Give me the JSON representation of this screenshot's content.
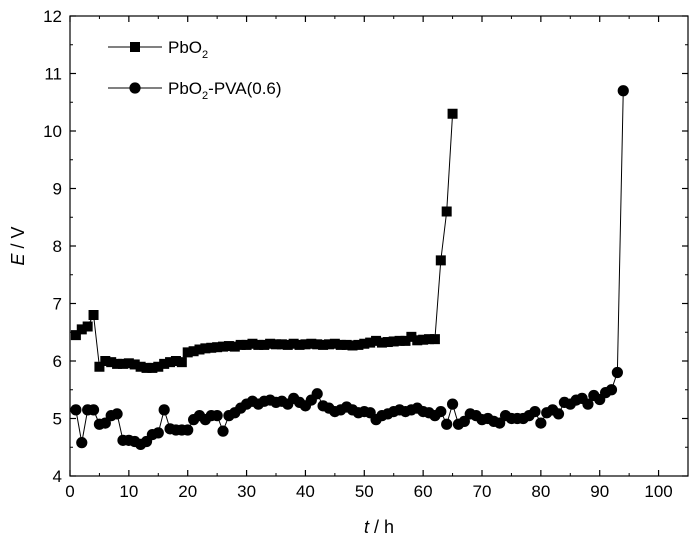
{
  "chart_data": {
    "type": "line",
    "x_axis": {
      "label_var": "t",
      "label_unit": " / h",
      "lim": [
        0,
        105
      ],
      "ticks": [
        0,
        10,
        20,
        30,
        40,
        50,
        60,
        70,
        80,
        90,
        100
      ],
      "tick_labels": [
        "0",
        "10",
        "20",
        "30",
        "40",
        "50",
        "60",
        "70",
        "80",
        "90",
        "100"
      ]
    },
    "y_axis": {
      "label_var": "E",
      "label_unit": " / V",
      "lim": [
        4,
        12
      ],
      "ticks": [
        4,
        5,
        6,
        7,
        8,
        9,
        10,
        11,
        12
      ],
      "tick_labels": [
        "4",
        "5",
        "6",
        "7",
        "8",
        "9",
        "10",
        "11",
        "12"
      ]
    },
    "grid": false,
    "legend_position": "top-left",
    "series": [
      {
        "legend_main": "PbO",
        "legend_sub": "2",
        "legend_rest": "",
        "marker": "square",
        "color": "#000000",
        "x": [
          1,
          2,
          3,
          4,
          5,
          6,
          7,
          8,
          9,
          10,
          11,
          12,
          13,
          14,
          15,
          16,
          17,
          18,
          19,
          20,
          21,
          22,
          23,
          24,
          25,
          26,
          27,
          28,
          29,
          30,
          31,
          32,
          33,
          34,
          35,
          36,
          37,
          38,
          39,
          40,
          41,
          42,
          43,
          44,
          45,
          46,
          47,
          48,
          49,
          50,
          51,
          52,
          53,
          54,
          55,
          56,
          57,
          58,
          59,
          60,
          61,
          62,
          63,
          64,
          65
        ],
        "y": [
          6.45,
          6.55,
          6.6,
          6.8,
          5.9,
          6.0,
          5.98,
          5.95,
          5.95,
          5.96,
          5.94,
          5.9,
          5.88,
          5.88,
          5.9,
          5.95,
          5.98,
          6.0,
          5.98,
          6.15,
          6.17,
          6.2,
          6.22,
          6.23,
          6.24,
          6.25,
          6.26,
          6.25,
          6.28,
          6.28,
          6.3,
          6.28,
          6.28,
          6.3,
          6.29,
          6.29,
          6.28,
          6.3,
          6.28,
          6.29,
          6.3,
          6.29,
          6.28,
          6.29,
          6.3,
          6.28,
          6.28,
          6.27,
          6.28,
          6.3,
          6.32,
          6.35,
          6.32,
          6.33,
          6.34,
          6.35,
          6.35,
          6.42,
          6.36,
          6.37,
          6.38,
          6.38,
          7.75,
          8.6,
          10.3
        ]
      },
      {
        "legend_main": "PbO",
        "legend_sub": "2",
        "legend_rest": "-PVA(0.6)",
        "marker": "circle",
        "color": "#000000",
        "x": [
          1,
          2,
          3,
          4,
          5,
          6,
          7,
          8,
          9,
          10,
          11,
          12,
          13,
          14,
          15,
          16,
          17,
          18,
          19,
          20,
          21,
          22,
          23,
          24,
          25,
          26,
          27,
          28,
          29,
          30,
          31,
          32,
          33,
          34,
          35,
          36,
          37,
          38,
          39,
          40,
          41,
          42,
          43,
          44,
          45,
          46,
          47,
          48,
          49,
          50,
          51,
          52,
          53,
          54,
          55,
          56,
          57,
          58,
          59,
          60,
          61,
          62,
          63,
          64,
          65,
          66,
          67,
          68,
          69,
          70,
          71,
          72,
          73,
          74,
          75,
          76,
          77,
          78,
          79,
          80,
          81,
          82,
          83,
          84,
          85,
          86,
          87,
          88,
          89,
          90,
          91,
          92,
          93,
          94
        ],
        "y": [
          5.15,
          4.58,
          5.15,
          5.15,
          4.9,
          4.92,
          5.05,
          5.08,
          4.62,
          4.62,
          4.6,
          4.55,
          4.6,
          4.72,
          4.75,
          5.15,
          4.82,
          4.8,
          4.8,
          4.8,
          4.98,
          5.05,
          4.98,
          5.05,
          5.05,
          4.78,
          5.05,
          5.1,
          5.18,
          5.25,
          5.3,
          5.25,
          5.3,
          5.32,
          5.28,
          5.3,
          5.25,
          5.35,
          5.28,
          5.22,
          5.32,
          5.43,
          5.22,
          5.18,
          5.12,
          5.15,
          5.2,
          5.15,
          5.1,
          5.12,
          5.1,
          4.98,
          5.05,
          5.08,
          5.12,
          5.15,
          5.12,
          5.15,
          5.18,
          5.12,
          5.1,
          5.05,
          5.12,
          4.9,
          5.25,
          4.9,
          4.95,
          5.08,
          5.05,
          4.98,
          5.0,
          4.95,
          4.92,
          5.05,
          5.0,
          5.0,
          5.0,
          5.05,
          5.12,
          4.92,
          5.1,
          5.15,
          5.08,
          5.28,
          5.25,
          5.32,
          5.35,
          5.25,
          5.4,
          5.33,
          5.45,
          5.5,
          5.8,
          10.7
        ]
      }
    ]
  }
}
